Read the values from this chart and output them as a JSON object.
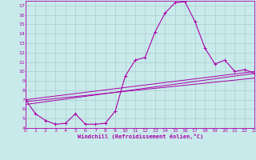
{
  "title": "",
  "xlabel": "Windchill (Refroidissement éolien,°C)",
  "ylabel": "",
  "bg_color": "#c8eaea",
  "line_color": "#aa00aa",
  "grid_color": "#aacccc",
  "xlim": [
    0,
    23
  ],
  "ylim": [
    4,
    17.5
  ],
  "xticks": [
    0,
    1,
    2,
    3,
    4,
    5,
    6,
    7,
    8,
    9,
    10,
    11,
    12,
    13,
    14,
    15,
    16,
    17,
    18,
    19,
    20,
    21,
    22,
    23
  ],
  "yticks": [
    4,
    5,
    6,
    7,
    8,
    9,
    10,
    11,
    12,
    13,
    14,
    15,
    16,
    17
  ],
  "series": [
    [
      0,
      7.0
    ],
    [
      1,
      5.5
    ],
    [
      2,
      4.8
    ],
    [
      3,
      4.4
    ],
    [
      4,
      4.5
    ],
    [
      5,
      5.5
    ],
    [
      6,
      4.4
    ],
    [
      7,
      4.4
    ],
    [
      8,
      4.5
    ],
    [
      9,
      5.8
    ],
    [
      10,
      9.5
    ],
    [
      11,
      11.2
    ],
    [
      12,
      11.5
    ],
    [
      13,
      14.2
    ],
    [
      14,
      16.2
    ],
    [
      15,
      17.3
    ],
    [
      16,
      17.4
    ],
    [
      17,
      15.3
    ],
    [
      18,
      12.5
    ],
    [
      19,
      10.8
    ],
    [
      20,
      11.2
    ],
    [
      21,
      10.0
    ],
    [
      22,
      10.2
    ],
    [
      23,
      9.8
    ]
  ],
  "line2": [
    [
      0,
      7.0
    ],
    [
      23,
      10.0
    ]
  ],
  "line3": [
    [
      0,
      6.8
    ],
    [
      23,
      9.3
    ]
  ],
  "line4": [
    [
      0,
      6.5
    ],
    [
      23,
      9.8
    ]
  ]
}
